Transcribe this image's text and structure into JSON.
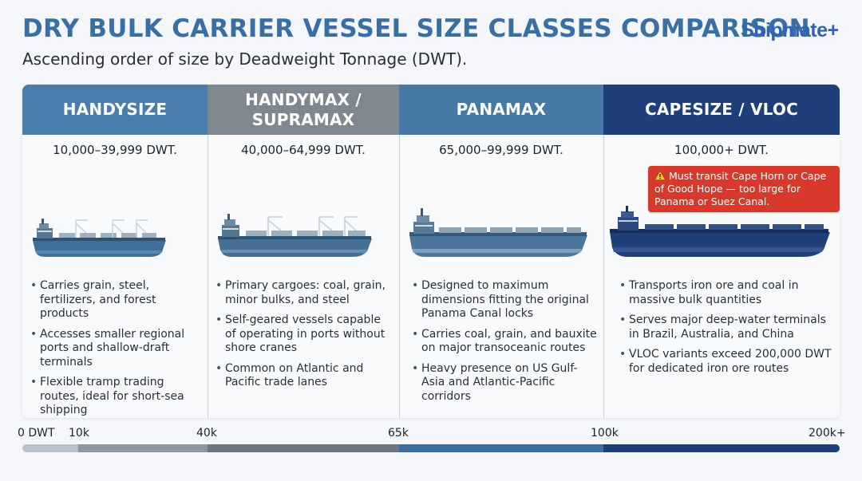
{
  "header": {
    "title": "DRY BULK CARRIER VESSEL SIZE CLASSES COMPARISON",
    "subtitle": "Ascending order of size by Deadweight Tonnage (DWT).",
    "logo_text": "Shipmate",
    "logo_plus": "+"
  },
  "columns": [
    {
      "name_line1": "HANDYSIZE",
      "name_line2": "",
      "dwt": "10,000–39,999 DWT.",
      "header_color": "#4a7dab",
      "bullets": [
        "Carries grain, steel, fertilizers, and forest products",
        "Accesses smaller regional ports and shallow-draft terminals",
        "Flexible tramp trading routes, ideal for short-sea shipping"
      ]
    },
    {
      "name_line1": "HANDYMAX /",
      "name_line2": "SUPRAMAX",
      "dwt": "40,000–64,999 DWT.",
      "header_color": "#7f8791",
      "bullets": [
        "Primary cargoes: coal, grain, minor bulks, and steel",
        "Self-geared vessels capable of operating in ports without shore cranes",
        "Common on Atlantic and Pacific trade lanes"
      ]
    },
    {
      "name_line1": "PANAMAX",
      "name_line2": "",
      "dwt": "65,000–99,999 DWT.",
      "header_color": "#4679a5",
      "bullets": [
        "Designed to maximum dimensions fitting the original Panama Canal locks",
        "Carries coal, grain, and bauxite on major transoceanic routes",
        "Heavy presence on US Gulf-Asia and Atlantic-Pacific corridors"
      ]
    },
    {
      "name_line1": "CAPESIZE / VLOC",
      "name_line2": "",
      "dwt": "100,000+ DWT.",
      "header_color": "#1f3f7a",
      "warning": "Must transit Cape Horn or Cape of Good Hope — too large for Panama or Suez Canal.",
      "bullets": [
        "Transports iron ore and coal in massive bulk quantities",
        "Serves major deep-water terminals in Brazil, Australia, and China",
        "VLOC variants exceed 200,000 DWT for dedicated iron ore routes"
      ]
    }
  ],
  "scale": {
    "labels": [
      "0 DWT",
      "10k",
      "40k",
      "65k",
      "100k",
      "200k+"
    ],
    "colors": [
      "#b9c2cc",
      "#8c97a3",
      "#6f7882",
      "#3d6e9c",
      "#1f3f7a"
    ]
  },
  "icons": {
    "warning": "warning-triangle-icon",
    "ship": "bulk-carrier-ship-icon"
  }
}
